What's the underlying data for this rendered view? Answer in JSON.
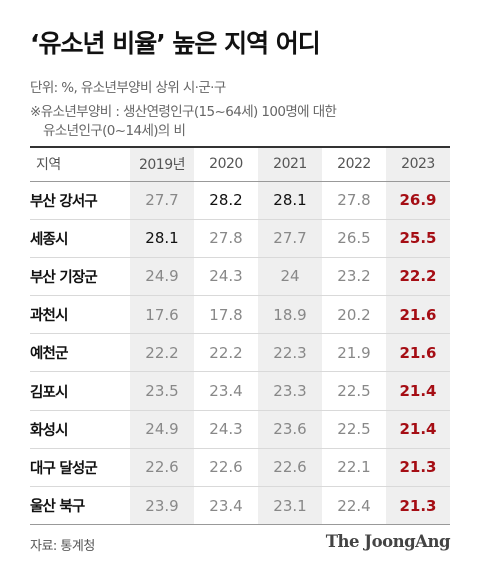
{
  "title": "‘유소년 비율’ 높은 지역 어디",
  "unit_note": "단위: %, 유소년부양비 상위 시·군·구",
  "definition_line1": "※유소년부양비 : 생산연령인구(15~64세) 100명에 대한",
  "definition_line2": "유소년인구(0~14세)의 비",
  "source": "자료: 통계청",
  "logo": "The JoongAng",
  "colors": {
    "highlight": "#a50d14",
    "shade": "#efefef",
    "muted": "#888888"
  },
  "chart_data": {
    "type": "table",
    "columns": [
      "지역",
      "2019년",
      "2020",
      "2021",
      "2022",
      "2023"
    ],
    "rows": [
      {
        "region": "부산 강서구",
        "values": [
          "27.7",
          "28.2",
          "28.1",
          "27.8",
          "26.9"
        ]
      },
      {
        "region": "세종시",
        "values": [
          "28.1",
          "27.8",
          "27.7",
          "26.5",
          "25.5"
        ]
      },
      {
        "region": "부산 기장군",
        "values": [
          "24.9",
          "24.3",
          "24",
          "23.2",
          "22.2"
        ]
      },
      {
        "region": "과천시",
        "values": [
          "17.6",
          "17.8",
          "18.9",
          "20.2",
          "21.6"
        ]
      },
      {
        "region": "예천군",
        "values": [
          "22.2",
          "22.2",
          "22.3",
          "21.9",
          "21.6"
        ]
      },
      {
        "region": "김포시",
        "values": [
          "23.5",
          "23.4",
          "23.3",
          "22.5",
          "21.4"
        ]
      },
      {
        "region": "화성시",
        "values": [
          "24.9",
          "24.3",
          "23.6",
          "22.5",
          "21.4"
        ]
      },
      {
        "region": "대구 달성군",
        "values": [
          "22.6",
          "22.6",
          "22.6",
          "22.1",
          "21.3"
        ]
      },
      {
        "region": "울산 북구",
        "values": [
          "23.9",
          "23.4",
          "23.1",
          "22.4",
          "21.3"
        ]
      }
    ]
  }
}
